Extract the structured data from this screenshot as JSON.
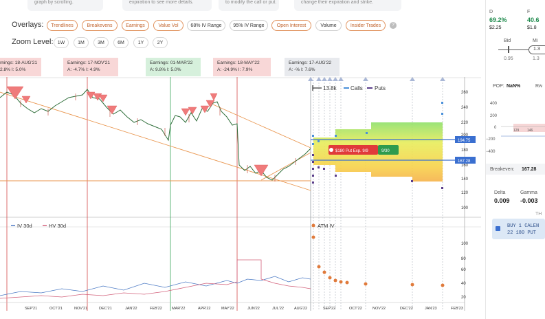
{
  "top_pills": [
    "graph by scrolling.",
    "expiration to see more details.",
    "to modify the call or put.",
    "change their expiration and strike."
  ],
  "overlays": {
    "label": "Overlays:",
    "buttons": [
      {
        "label": "Trendlines",
        "active": true
      },
      {
        "label": "Breakevens",
        "active": true
      },
      {
        "label": "Earnings",
        "active": true
      },
      {
        "label": "Value Vol",
        "active": true
      },
      {
        "label": "68% IV Range",
        "active": false
      },
      {
        "label": "95% IV Range",
        "active": false
      },
      {
        "label": "Open Interest",
        "active": true
      },
      {
        "label": "Volume",
        "active": false
      },
      {
        "label": "Insider Trades",
        "active": true
      }
    ],
    "help": "?"
  },
  "zoom": {
    "label": "Zoom Level:",
    "buttons": [
      "1W",
      "1M",
      "3M",
      "6M",
      "1Y",
      "2Y"
    ]
  },
  "earnings": [
    {
      "title": "Earnings: 18-AUG'21",
      "stats": "2.8%   I: 5.0%",
      "tone": "red"
    },
    {
      "title": "Earnings: 17-NOV'21",
      "stats": "A: -4.7%   I: 4.9%",
      "tone": "red"
    },
    {
      "title": "Earnings: 01-MAR'22",
      "stats": "A: 9.8%   I: 5.0%",
      "tone": "green"
    },
    {
      "title": "Earnings: 18-MAY'22",
      "stats": "A: -24.9%   I: 7.9%",
      "tone": "red"
    },
    {
      "title": "Earnings: 17-AUG'22",
      "stats": "A: -%   I: 7.6%",
      "tone": "gray"
    }
  ],
  "legend": {
    "oi": "13.8k",
    "calls": "Calls",
    "puts": "Puts",
    "iv30": "IV 30d",
    "hv30": "HV 30d",
    "atm_iv": "ATM IV"
  },
  "price_axis": [
    "260",
    "240",
    "220",
    "200",
    "180",
    "160",
    "140",
    "120",
    "100"
  ],
  "price_markers": {
    "upper": "194.75",
    "lower": "167.28"
  },
  "trade_tag": {
    "label": "$180 Put Exp. 9/9",
    "sub": "9/30"
  },
  "iv_axis": [
    "100",
    "80",
    "60",
    "40",
    "20"
  ],
  "x_axis": [
    "SEP'21",
    "OCT'21",
    "NOV'21",
    "DEC'21",
    "JAN'22",
    "FEB'22",
    "MAR'22",
    "APR'22",
    "MAY'22",
    "JUN'22",
    "JUL'22",
    "AUG'22",
    "SEP'22",
    "OCT'22",
    "NOV'22",
    "DEC'22",
    "JAN'23",
    "FEB'23"
  ],
  "side": {
    "d_label": "D",
    "f_label": "F",
    "d_pct": "69.2%",
    "f_pct": "40.6",
    "d_price": "$2.25",
    "f_price": "$1.8",
    "bid": "Bid",
    "mid": "Mi",
    "bid_val": "0.95",
    "mid_val": "1.3",
    "mid_box": "1.3",
    "pop_label": "POP:",
    "pop_val": "NaN%",
    "rw": "Rw",
    "pl_ticks": [
      "400",
      "200",
      "0",
      "−200",
      "−400"
    ],
    "pl_x": [
      "129",
      "146"
    ],
    "breakeven_label": "Breakeven:",
    "breakeven_val": "167.28",
    "delta_label": "Delta",
    "gamma_label": "Gamma",
    "delta_val": "0.009",
    "gamma_val": "-0.003",
    "th": "TH",
    "order_line1": "BUY 1 CALEN",
    "order_line2": "22 180 PUT"
  },
  "colors": {
    "accent": "#e07a3b",
    "calls": "#4a90d9",
    "puts": "#5a3d8a",
    "iv": "#4a79c4",
    "hv": "#d2607a",
    "green": "#1e8a4c"
  }
}
